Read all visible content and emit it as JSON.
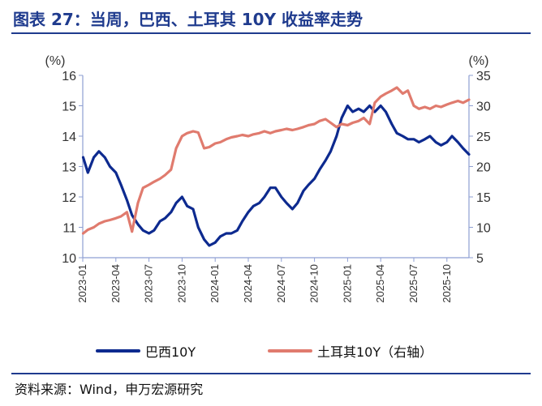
{
  "header": {
    "title": "图表 27：当周，巴西、土耳其 10Y 收益率走势"
  },
  "footer": {
    "source": "资料来源：Wind，申万宏源研究"
  },
  "colors": {
    "brazil": "#0d2a8f",
    "turkey": "#e07b6e",
    "axis": "#8e9fd3",
    "accent": "#1f3b8e"
  },
  "chart_data": {
    "type": "line",
    "left_axis": {
      "unit": "(%)",
      "min": 10,
      "max": 16,
      "ticks": [
        "10",
        "11",
        "12",
        "13",
        "14",
        "15",
        "16"
      ]
    },
    "right_axis": {
      "unit": "(%)",
      "min": 5,
      "max": 35,
      "ticks": [
        "5",
        "10",
        "15",
        "20",
        "25",
        "30",
        "35"
      ]
    },
    "x_range": [
      "2023-01",
      "2025-12"
    ],
    "x_ticks": [
      "2023-01",
      "2023-04",
      "2023-07",
      "2023-10",
      "2024-01",
      "2024-04",
      "2024-07",
      "2024-10",
      "2025-01",
      "2025-04",
      "2025-07",
      "2025-10"
    ],
    "legend_position": "bottom",
    "series": [
      {
        "name": "巴西10Y",
        "axis": "left",
        "points": [
          [
            "2023-01-02",
            13.3
          ],
          [
            "2023-01-15",
            12.8
          ],
          [
            "2023-02-01",
            13.3
          ],
          [
            "2023-02-15",
            13.5
          ],
          [
            "2023-03-01",
            13.3
          ],
          [
            "2023-03-15",
            13.0
          ],
          [
            "2023-04-01",
            12.8
          ],
          [
            "2023-04-15",
            12.4
          ],
          [
            "2023-05-01",
            11.9
          ],
          [
            "2023-05-15",
            11.4
          ],
          [
            "2023-06-01",
            11.1
          ],
          [
            "2023-06-15",
            10.9
          ],
          [
            "2023-07-01",
            10.8
          ],
          [
            "2023-07-15",
            10.9
          ],
          [
            "2023-08-01",
            11.2
          ],
          [
            "2023-08-15",
            11.3
          ],
          [
            "2023-09-01",
            11.5
          ],
          [
            "2023-09-15",
            11.8
          ],
          [
            "2023-10-01",
            12.0
          ],
          [
            "2023-10-15",
            11.7
          ],
          [
            "2023-11-01",
            11.6
          ],
          [
            "2023-11-15",
            11.0
          ],
          [
            "2023-12-01",
            10.6
          ],
          [
            "2023-12-15",
            10.4
          ],
          [
            "2024-01-01",
            10.5
          ],
          [
            "2024-01-15",
            10.7
          ],
          [
            "2024-02-01",
            10.8
          ],
          [
            "2024-02-15",
            10.8
          ],
          [
            "2024-03-01",
            10.9
          ],
          [
            "2024-03-15",
            11.2
          ],
          [
            "2024-04-01",
            11.5
          ],
          [
            "2024-04-15",
            11.7
          ],
          [
            "2024-05-01",
            11.8
          ],
          [
            "2024-05-15",
            12.0
          ],
          [
            "2024-06-01",
            12.3
          ],
          [
            "2024-06-15",
            12.3
          ],
          [
            "2024-07-01",
            12.0
          ],
          [
            "2024-07-15",
            11.8
          ],
          [
            "2024-08-01",
            11.6
          ],
          [
            "2024-08-15",
            11.8
          ],
          [
            "2024-09-01",
            12.2
          ],
          [
            "2024-09-15",
            12.4
          ],
          [
            "2024-10-01",
            12.6
          ],
          [
            "2024-10-15",
            12.9
          ],
          [
            "2024-11-01",
            13.2
          ],
          [
            "2024-11-15",
            13.5
          ],
          [
            "2024-12-01",
            14.0
          ],
          [
            "2024-12-15",
            14.6
          ],
          [
            "2025-01-01",
            15.0
          ],
          [
            "2025-01-15",
            14.8
          ],
          [
            "2025-02-01",
            14.9
          ],
          [
            "2025-02-15",
            14.8
          ],
          [
            "2025-03-01",
            15.0
          ],
          [
            "2025-03-15",
            14.8
          ],
          [
            "2025-04-01",
            15.0
          ],
          [
            "2025-04-15",
            14.8
          ],
          [
            "2025-05-01",
            14.4
          ],
          [
            "2025-05-15",
            14.1
          ],
          [
            "2025-06-01",
            14.0
          ],
          [
            "2025-06-15",
            13.9
          ],
          [
            "2025-07-01",
            13.9
          ],
          [
            "2025-07-15",
            13.8
          ],
          [
            "2025-08-01",
            13.9
          ],
          [
            "2025-08-15",
            14.0
          ],
          [
            "2025-09-01",
            13.8
          ],
          [
            "2025-09-15",
            13.7
          ],
          [
            "2025-10-01",
            13.8
          ],
          [
            "2025-10-15",
            14.0
          ],
          [
            "2025-11-01",
            13.8
          ],
          [
            "2025-11-15",
            13.6
          ],
          [
            "2025-12-01",
            13.4
          ]
        ]
      },
      {
        "name": "土耳其10Y（右轴）",
        "axis": "right",
        "points": [
          [
            "2023-01-02",
            9.0
          ],
          [
            "2023-01-15",
            9.6
          ],
          [
            "2023-02-01",
            10.0
          ],
          [
            "2023-02-15",
            10.6
          ],
          [
            "2023-03-01",
            11.0
          ],
          [
            "2023-03-15",
            11.2
          ],
          [
            "2023-04-01",
            11.5
          ],
          [
            "2023-04-15",
            11.8
          ],
          [
            "2023-05-01",
            12.5
          ],
          [
            "2023-05-15",
            9.3
          ],
          [
            "2023-06-01",
            14.0
          ],
          [
            "2023-06-15",
            16.5
          ],
          [
            "2023-07-01",
            17.0
          ],
          [
            "2023-07-15",
            17.5
          ],
          [
            "2023-08-01",
            18.0
          ],
          [
            "2023-08-15",
            18.6
          ],
          [
            "2023-09-01",
            19.5
          ],
          [
            "2023-09-15",
            23.0
          ],
          [
            "2023-10-01",
            25.0
          ],
          [
            "2023-10-15",
            25.5
          ],
          [
            "2023-11-01",
            25.8
          ],
          [
            "2023-11-15",
            25.6
          ],
          [
            "2023-12-01",
            23.0
          ],
          [
            "2023-12-15",
            23.2
          ],
          [
            "2024-01-01",
            23.8
          ],
          [
            "2024-01-15",
            24.0
          ],
          [
            "2024-02-01",
            24.5
          ],
          [
            "2024-02-15",
            24.8
          ],
          [
            "2024-03-01",
            25.0
          ],
          [
            "2024-03-15",
            25.2
          ],
          [
            "2024-04-01",
            25.0
          ],
          [
            "2024-04-15",
            25.3
          ],
          [
            "2024-05-01",
            25.5
          ],
          [
            "2024-05-15",
            25.8
          ],
          [
            "2024-06-01",
            25.5
          ],
          [
            "2024-06-15",
            25.8
          ],
          [
            "2024-07-01",
            26.0
          ],
          [
            "2024-07-15",
            26.2
          ],
          [
            "2024-08-01",
            26.0
          ],
          [
            "2024-08-15",
            26.2
          ],
          [
            "2024-09-01",
            26.5
          ],
          [
            "2024-09-15",
            26.8
          ],
          [
            "2024-10-01",
            27.0
          ],
          [
            "2024-10-15",
            27.5
          ],
          [
            "2024-11-01",
            27.8
          ],
          [
            "2024-11-15",
            27.2
          ],
          [
            "2024-12-01",
            26.5
          ],
          [
            "2024-12-15",
            27.0
          ],
          [
            "2025-01-01",
            26.8
          ],
          [
            "2025-01-15",
            27.2
          ],
          [
            "2025-02-01",
            27.5
          ],
          [
            "2025-02-15",
            28.0
          ],
          [
            "2025-03-01",
            27.0
          ],
          [
            "2025-03-15",
            30.5
          ],
          [
            "2025-04-01",
            31.5
          ],
          [
            "2025-04-15",
            32.0
          ],
          [
            "2025-05-01",
            32.5
          ],
          [
            "2025-05-15",
            33.0
          ],
          [
            "2025-06-01",
            32.0
          ],
          [
            "2025-06-15",
            32.5
          ],
          [
            "2025-07-01",
            30.0
          ],
          [
            "2025-07-15",
            29.5
          ],
          [
            "2025-08-01",
            29.8
          ],
          [
            "2025-08-15",
            29.5
          ],
          [
            "2025-09-01",
            30.0
          ],
          [
            "2025-09-15",
            29.8
          ],
          [
            "2025-10-01",
            30.2
          ],
          [
            "2025-10-15",
            30.5
          ],
          [
            "2025-11-01",
            30.8
          ],
          [
            "2025-11-15",
            30.5
          ],
          [
            "2025-12-01",
            31.0
          ]
        ]
      }
    ]
  }
}
